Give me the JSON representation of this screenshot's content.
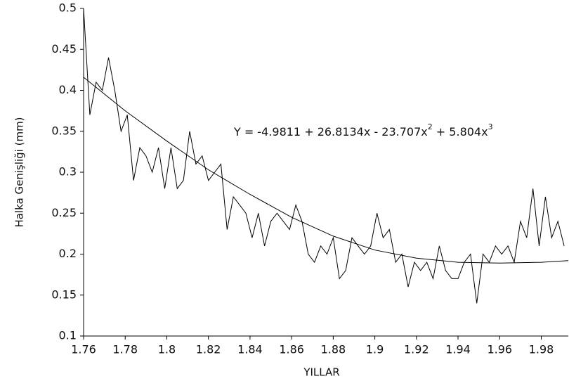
{
  "chart_data": {
    "type": "line",
    "xlabel": "YILLAR",
    "ylabel": "Halka Genişliği (mm)",
    "annotation": [
      "Y = -4.9811 + 26.8134x - 23.707x",
      "2",
      " + 5.804x",
      "3"
    ],
    "xlim": [
      1.76,
      1.993
    ],
    "ylim": [
      0.1,
      0.5
    ],
    "xticks": [
      1.76,
      1.78,
      1.8,
      1.82,
      1.84,
      1.86,
      1.88,
      1.9,
      1.92,
      1.94,
      1.96,
      1.98
    ],
    "yticks": [
      0.1,
      0.15,
      0.2,
      0.25,
      0.3,
      0.35,
      0.4,
      0.45,
      0.5
    ],
    "series": [
      {
        "color": "#000000",
        "x": [
          1.76,
          1.763,
          1.766,
          1.769,
          1.772,
          1.775,
          1.778,
          1.781,
          1.784,
          1.787,
          1.79,
          1.793,
          1.796,
          1.799,
          1.802,
          1.805,
          1.808,
          1.811,
          1.814,
          1.817,
          1.82,
          1.823,
          1.826,
          1.829,
          1.832,
          1.835,
          1.838,
          1.841,
          1.844,
          1.847,
          1.85,
          1.853,
          1.856,
          1.859,
          1.862,
          1.865,
          1.868,
          1.871,
          1.874,
          1.877,
          1.88,
          1.883,
          1.886,
          1.889,
          1.892,
          1.895,
          1.898,
          1.901,
          1.904,
          1.907,
          1.91,
          1.913,
          1.916,
          1.919,
          1.922,
          1.925,
          1.928,
          1.931,
          1.934,
          1.937,
          1.94,
          1.943,
          1.946,
          1.949,
          1.952,
          1.955,
          1.958,
          1.961,
          1.964,
          1.967,
          1.97,
          1.973,
          1.976,
          1.979,
          1.982,
          1.985,
          1.988,
          1.991
        ],
        "values": [
          0.5,
          0.37,
          0.41,
          0.4,
          0.44,
          0.4,
          0.35,
          0.37,
          0.29,
          0.33,
          0.32,
          0.3,
          0.33,
          0.28,
          0.33,
          0.28,
          0.29,
          0.35,
          0.31,
          0.32,
          0.29,
          0.3,
          0.31,
          0.23,
          0.27,
          0.26,
          0.25,
          0.22,
          0.25,
          0.21,
          0.24,
          0.25,
          0.24,
          0.23,
          0.26,
          0.24,
          0.2,
          0.19,
          0.21,
          0.2,
          0.22,
          0.17,
          0.18,
          0.22,
          0.21,
          0.2,
          0.21,
          0.25,
          0.22,
          0.23,
          0.19,
          0.2,
          0.16,
          0.19,
          0.18,
          0.19,
          0.17,
          0.21,
          0.18,
          0.17,
          0.17,
          0.19,
          0.2,
          0.14,
          0.2,
          0.19,
          0.21,
          0.2,
          0.21,
          0.19,
          0.24,
          0.22,
          0.28,
          0.21,
          0.27,
          0.22,
          0.24,
          0.21
        ]
      },
      {
        "color": "#000000",
        "x": [
          1.76,
          1.78,
          1.8,
          1.82,
          1.84,
          1.86,
          1.88,
          1.9,
          1.92,
          1.94,
          1.96,
          1.98,
          1.993
        ],
        "values": [
          0.416,
          0.375,
          0.338,
          0.303,
          0.273,
          0.245,
          0.222,
          0.205,
          0.195,
          0.19,
          0.189,
          0.19,
          0.192
        ]
      }
    ]
  }
}
